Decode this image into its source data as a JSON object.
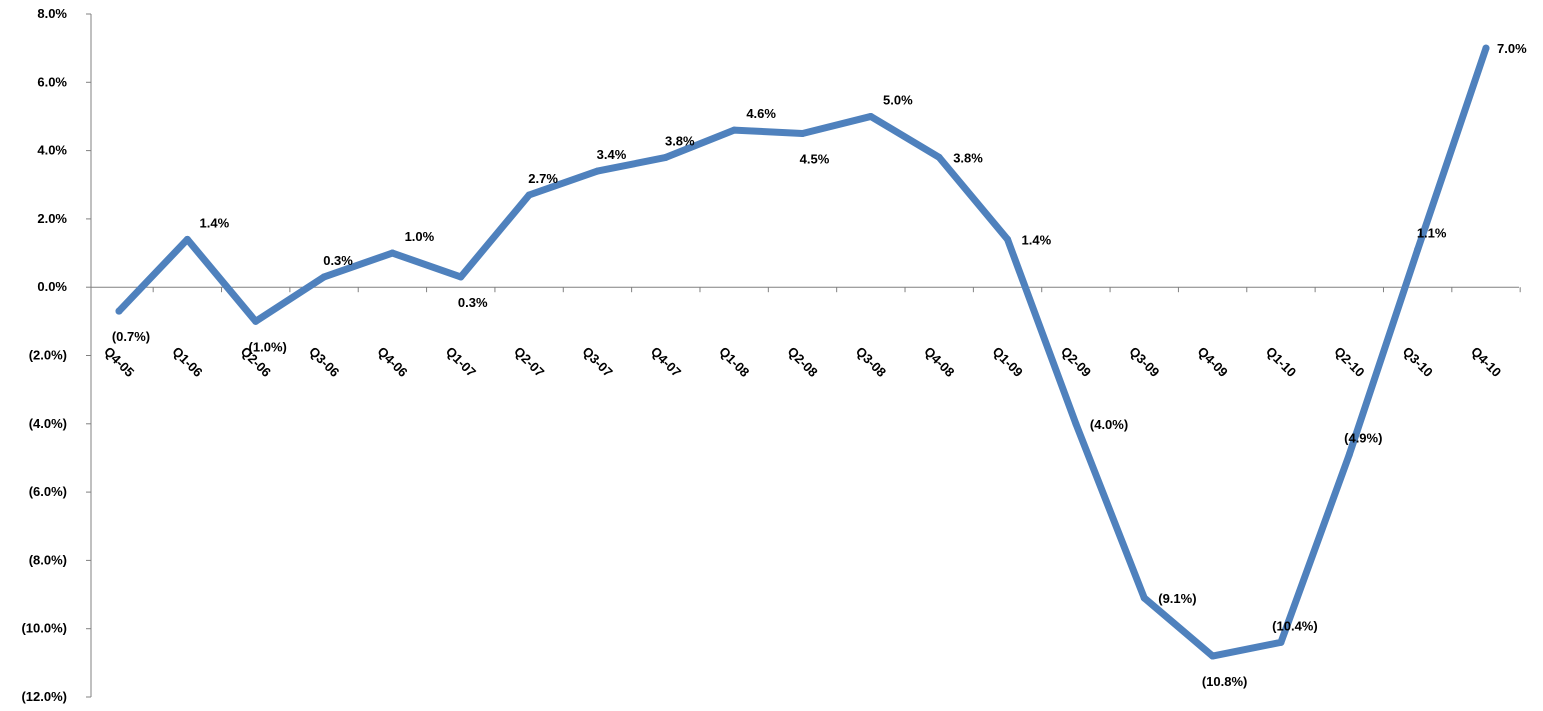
{
  "chart_data": {
    "type": "line",
    "title": "",
    "xlabel": "",
    "ylabel": "",
    "categories": [
      "Q4-05",
      "Q1-06",
      "Q2-06",
      "Q3-06",
      "Q4-06",
      "Q1-07",
      "Q2-07",
      "Q3-07",
      "Q4-07",
      "Q1-08",
      "Q2-08",
      "Q3-08",
      "Q4-08",
      "Q1-09",
      "Q2-09",
      "Q3-09",
      "Q4-09",
      "Q1-10",
      "Q2-10",
      "Q3-10",
      "Q4-10"
    ],
    "series": [
      {
        "values": [
          -0.7,
          1.4,
          -1.0,
          0.3,
          1.0,
          0.3,
          2.7,
          3.4,
          3.8,
          4.6,
          4.5,
          5.0,
          3.8,
          1.4,
          -4.0,
          -9.1,
          -10.8,
          -10.4,
          -4.9,
          1.1,
          7.0
        ],
        "labels": [
          "(0.7%)",
          "1.4%",
          "(1.0%)",
          "0.3%",
          "1.0%",
          "0.3%",
          "2.7%",
          "3.4%",
          "3.8%",
          "4.6%",
          "4.5%",
          "5.0%",
          "3.8%",
          "1.4%",
          "(4.0%)",
          "(9.1%)",
          "(10.8%)",
          "(10.4%)",
          "(4.9%)",
          "1.1%",
          "7.0%"
        ]
      }
    ],
    "ylim": [
      -12,
      8
    ],
    "y_ticks": [
      8,
      6,
      4,
      2,
      0,
      -2,
      -4,
      -6,
      -8,
      -10,
      -12
    ],
    "y_tick_labels": [
      "8.0%",
      "6.0%",
      "4.0%",
      "2.0%",
      "0.0%",
      "(2.0%)",
      "(4.0%)",
      "(6.0%)",
      "(8.0%)",
      "(10.0%)",
      "(12.0%)"
    ],
    "grid": false,
    "legend": "none",
    "line_color": "#4f81bd",
    "axis_color": "#808080"
  }
}
